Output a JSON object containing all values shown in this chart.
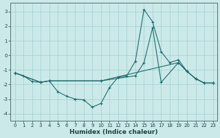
{
  "xlabel": "Humidex (Indice chaleur)",
  "xlim": [
    -0.5,
    23.5
  ],
  "ylim": [
    -4.5,
    3.6
  ],
  "yticks": [
    -4,
    -3,
    -2,
    -1,
    0,
    1,
    2,
    3
  ],
  "xticks": [
    0,
    1,
    2,
    3,
    4,
    5,
    6,
    7,
    8,
    9,
    10,
    11,
    12,
    13,
    14,
    15,
    16,
    17,
    18,
    19,
    20,
    21,
    22,
    23
  ],
  "background_color": "#cce9e9",
  "grid_color": "#9fcfcf",
  "line_color": "#1a6b6b",
  "line1_x": [
    0,
    1,
    2,
    3,
    4,
    5,
    6,
    7,
    8,
    9,
    10,
    11,
    12,
    13,
    14,
    15,
    16,
    17,
    18,
    19,
    20,
    21,
    22,
    23
  ],
  "line1_y": [
    -1.2,
    -1.4,
    -1.8,
    -1.85,
    -1.75,
    -2.5,
    -2.8,
    -3.0,
    -3.05,
    -3.55,
    -3.3,
    -2.2,
    -1.5,
    -1.4,
    -0.4,
    3.15,
    2.3,
    0.25,
    -0.5,
    -0.3,
    -1.1,
    -1.6,
    -1.9,
    -1.9
  ],
  "line2_x": [
    0,
    3,
    4,
    10,
    14,
    15,
    16,
    17,
    19,
    20,
    21,
    22,
    23
  ],
  "line2_y": [
    -1.2,
    -1.85,
    -1.75,
    -1.75,
    -1.4,
    -0.5,
    1.9,
    -1.85,
    -0.5,
    -1.1,
    -1.6,
    -1.9,
    -1.9
  ],
  "line3_x": [
    0,
    3,
    4,
    10,
    19,
    20,
    21,
    22,
    23
  ],
  "line3_y": [
    -1.2,
    -1.85,
    -1.75,
    -1.75,
    -0.5,
    -1.1,
    -1.6,
    -1.9,
    -1.9
  ]
}
